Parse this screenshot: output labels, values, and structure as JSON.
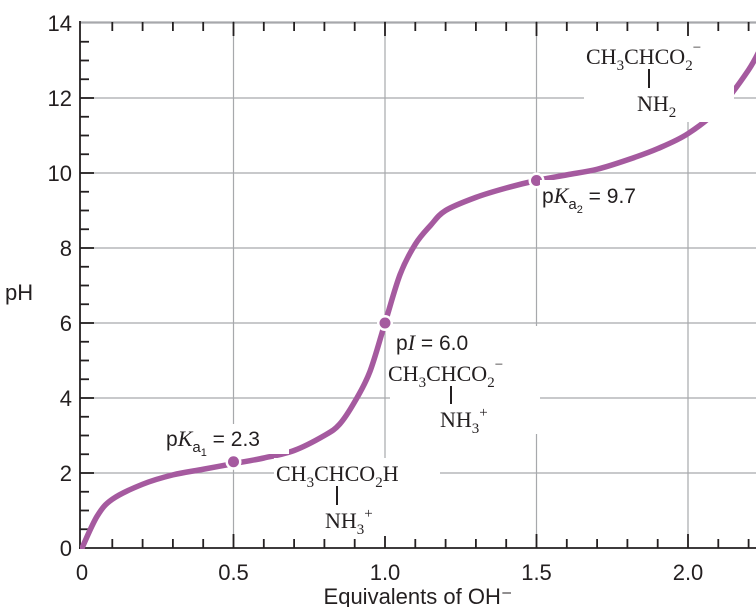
{
  "chart_data": {
    "type": "line",
    "xlabel": "Equivalents of OH⁻",
    "ylabel": "pH",
    "xlim": [
      0,
      2.25
    ],
    "ylim": [
      0,
      14
    ],
    "x_ticks": [
      0,
      0.5,
      1.0,
      1.5,
      2.0
    ],
    "x_tick_labels": [
      "0",
      "0.5",
      "1.0",
      "1.5",
      "2.0"
    ],
    "y_ticks": [
      0,
      2,
      4,
      6,
      8,
      10,
      12,
      14
    ],
    "y_tick_labels": [
      "0",
      "2",
      "4",
      "6",
      "8",
      "10",
      "12",
      "14"
    ],
    "grid": true,
    "series_color": "#a55a9f",
    "series": [
      {
        "x": [
          0,
          0.05,
          0.1,
          0.2,
          0.3,
          0.4,
          0.5,
          0.6,
          0.7,
          0.8,
          0.85,
          0.9,
          0.95,
          1.0,
          1.05,
          1.1,
          1.15,
          1.2,
          1.3,
          1.4,
          1.5,
          1.6,
          1.7,
          1.8,
          1.9,
          2.0,
          2.1,
          2.2,
          2.25
        ],
        "y": [
          0,
          0.85,
          1.3,
          1.7,
          1.95,
          2.1,
          2.25,
          2.4,
          2.6,
          3.0,
          3.3,
          3.9,
          4.7,
          6.0,
          7.3,
          8.1,
          8.6,
          9.0,
          9.35,
          9.6,
          9.8,
          9.95,
          10.1,
          10.35,
          10.65,
          11.05,
          11.7,
          12.75,
          13.5
        ]
      }
    ],
    "points": [
      {
        "x": 0.5,
        "y": 2.3
      },
      {
        "x": 1.0,
        "y": 6.0
      },
      {
        "x": 1.5,
        "y": 9.8
      }
    ]
  }
}
